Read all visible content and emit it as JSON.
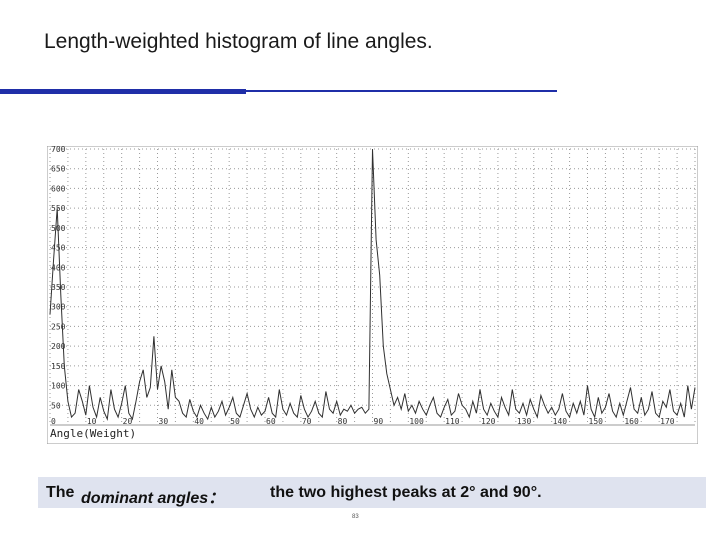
{
  "slide": {
    "title": "Length-weighted histogram of line angles.",
    "page_number": "83"
  },
  "caption": {
    "lead": "The ",
    "term": "dominant angles：",
    "rest": "the two highest peaks at 2° and 90°."
  },
  "colors": {
    "accent": "#1f2ea8",
    "caption_bg": "#dfe3ef",
    "plot_line": "#303030",
    "grid": "#9a9a9a"
  },
  "chart_data": {
    "type": "line",
    "title": "",
    "xlabel": "Angle(Weight)",
    "ylabel": "",
    "xlim": [
      0,
      180
    ],
    "ylim": [
      0,
      700
    ],
    "x_ticks": [
      0,
      10,
      20,
      30,
      40,
      50,
      60,
      70,
      80,
      90,
      100,
      110,
      120,
      130,
      140,
      150,
      160,
      170
    ],
    "y_ticks": [
      50,
      100,
      150,
      200,
      250,
      300,
      350,
      400,
      450,
      500,
      550,
      600,
      650,
      700
    ],
    "grid": true,
    "legend": "none",
    "x": [
      0,
      1,
      2,
      3,
      4,
      5,
      6,
      7,
      8,
      9,
      10,
      11,
      12,
      13,
      14,
      15,
      16,
      17,
      18,
      19,
      20,
      21,
      22,
      23,
      24,
      25,
      26,
      27,
      28,
      29,
      30,
      31,
      32,
      33,
      34,
      35,
      36,
      37,
      38,
      39,
      40,
      41,
      42,
      43,
      44,
      45,
      46,
      47,
      48,
      49,
      50,
      51,
      52,
      53,
      54,
      55,
      56,
      57,
      58,
      59,
      60,
      61,
      62,
      63,
      64,
      65,
      66,
      67,
      68,
      69,
      70,
      71,
      72,
      73,
      74,
      75,
      76,
      77,
      78,
      79,
      80,
      81,
      82,
      83,
      84,
      85,
      86,
      87,
      88,
      89,
      90,
      91,
      92,
      93,
      94,
      95,
      96,
      97,
      98,
      99,
      100,
      101,
      102,
      103,
      104,
      105,
      106,
      107,
      108,
      109,
      110,
      111,
      112,
      113,
      114,
      115,
      116,
      117,
      118,
      119,
      120,
      121,
      122,
      123,
      124,
      125,
      126,
      127,
      128,
      129,
      130,
      131,
      132,
      133,
      134,
      135,
      136,
      137,
      138,
      139,
      140,
      141,
      142,
      143,
      144,
      145,
      146,
      147,
      148,
      149,
      150,
      151,
      152,
      153,
      154,
      155,
      156,
      157,
      158,
      159,
      160,
      161,
      162,
      163,
      164,
      165,
      166,
      167,
      168,
      169,
      170,
      171,
      172,
      173,
      174,
      175,
      176,
      177,
      178,
      179,
      180
    ],
    "series": [
      {
        "values": [
          280,
          420,
          550,
          330,
          150,
          60,
          20,
          30,
          90,
          60,
          25,
          100,
          45,
          20,
          70,
          35,
          15,
          90,
          40,
          20,
          55,
          100,
          30,
          15,
          60,
          110,
          140,
          70,
          95,
          225,
          90,
          150,
          110,
          40,
          140,
          70,
          60,
          30,
          20,
          65,
          35,
          20,
          50,
          30,
          15,
          45,
          20,
          35,
          60,
          25,
          45,
          70,
          30,
          20,
          50,
          80,
          40,
          20,
          45,
          25,
          35,
          70,
          30,
          20,
          90,
          40,
          25,
          55,
          30,
          20,
          75,
          40,
          20,
          35,
          60,
          30,
          20,
          85,
          40,
          30,
          60,
          25,
          40,
          35,
          50,
          30,
          40,
          45,
          30,
          40,
          700,
          470,
          380,
          200,
          130,
          90,
          50,
          70,
          40,
          80,
          35,
          50,
          30,
          60,
          40,
          25,
          50,
          70,
          30,
          20,
          45,
          65,
          25,
          35,
          80,
          50,
          40,
          20,
          60,
          30,
          90,
          40,
          25,
          55,
          35,
          20,
          70,
          45,
          25,
          90,
          40,
          30,
          55,
          25,
          65,
          40,
          20,
          75,
          50,
          30,
          45,
          25,
          40,
          80,
          35,
          20,
          55,
          30,
          60,
          25,
          100,
          40,
          20,
          70,
          30,
          45,
          80,
          35,
          20,
          55,
          25,
          60,
          95,
          40,
          30,
          70,
          25,
          40,
          85,
          30,
          20,
          60,
          45,
          90,
          35,
          25,
          55,
          20,
          100,
          40,
          95
        ]
      }
    ]
  }
}
